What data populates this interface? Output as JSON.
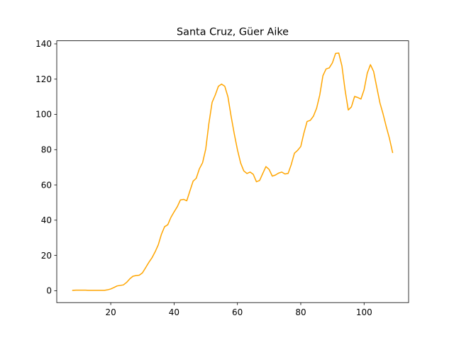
{
  "chart_data": {
    "type": "line",
    "title": "Santa Cruz, Güer Aike",
    "xlabel": "",
    "ylabel": "",
    "xlim": [
      2.95,
      114.05
    ],
    "ylim": [
      -6.75,
      141.75
    ],
    "grid": false,
    "xticks": [
      20,
      40,
      60,
      80,
      100
    ],
    "yticks": [
      0,
      20,
      40,
      60,
      80,
      100,
      120,
      140
    ],
    "series": [
      {
        "color": "#ffa500",
        "x": [
          8,
          9,
          10,
          11,
          12,
          13,
          14,
          15,
          16,
          17,
          18,
          19,
          20,
          21,
          22,
          23,
          24,
          25,
          26,
          27,
          28,
          29,
          30,
          31,
          32,
          33,
          34,
          35,
          36,
          37,
          38,
          39,
          40,
          41,
          42,
          43,
          44,
          45,
          46,
          47,
          48,
          49,
          50,
          51,
          52,
          53,
          54,
          55,
          56,
          57,
          58,
          59,
          60,
          61,
          62,
          63,
          64,
          65,
          66,
          67,
          68,
          69,
          70,
          71,
          72,
          73,
          74,
          75,
          76,
          77,
          78,
          79,
          80,
          81,
          82,
          83,
          84,
          85,
          86,
          87,
          88,
          89,
          90,
          91,
          92,
          93,
          94,
          95,
          96,
          97,
          98,
          99,
          100,
          101,
          102,
          103,
          104,
          105,
          106,
          107,
          108,
          109
        ],
        "y": [
          0.2,
          0.3,
          0.3,
          0.3,
          0.3,
          0.2,
          0.2,
          0.2,
          0.2,
          0.2,
          0.2,
          0.5,
          1.0,
          1.8,
          2.7,
          3.0,
          3.3,
          4.7,
          6.7,
          8.2,
          8.6,
          8.8,
          10.1,
          13.0,
          16.0,
          18.6,
          22.0,
          26.0,
          32.0,
          36.3,
          37.4,
          41.6,
          44.7,
          47.6,
          51.5,
          51.8,
          51.0,
          56.6,
          62.1,
          63.8,
          69.2,
          72.6,
          80.4,
          95.0,
          106.8,
          111.0,
          116.0,
          117.2,
          116.0,
          110.0,
          99.0,
          89.0,
          80.0,
          72.5,
          68.0,
          66.5,
          67.3,
          66.0,
          61.8,
          62.5,
          66.5,
          70.4,
          68.8,
          65.0,
          65.6,
          66.7,
          67.3,
          66.2,
          66.5,
          71.6,
          78.0,
          79.6,
          81.8,
          89.5,
          96.0,
          96.6,
          99.0,
          103.5,
          111.0,
          122.0,
          125.8,
          126.4,
          129.3,
          134.6,
          134.8,
          127.5,
          113.7,
          102.5,
          104.3,
          110.2,
          109.6,
          108.7,
          114.0,
          123.4,
          128.2,
          124.4,
          115.4,
          106.5,
          100.2,
          93.0,
          86.4,
          78.4
        ]
      }
    ]
  }
}
